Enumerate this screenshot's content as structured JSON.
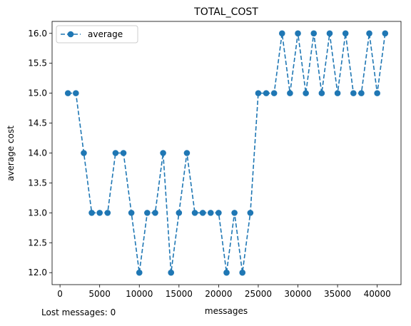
{
  "chart_data": {
    "type": "line",
    "title": "TOTAL_COST",
    "xlabel": "messages",
    "ylabel": "average cost",
    "xlim": [
      -1000,
      43000
    ],
    "ylim": [
      11.8,
      16.2
    ],
    "x_ticks": [
      0,
      5000,
      10000,
      15000,
      20000,
      25000,
      30000,
      35000,
      40000
    ],
    "y_ticks": [
      12.0,
      12.5,
      13.0,
      13.5,
      14.0,
      14.5,
      15.0,
      15.5,
      16.0
    ],
    "grid": false,
    "legend_position": "top-left",
    "series": [
      {
        "name": "average",
        "color": "#1f77b4",
        "line_style": "dashed",
        "marker": "circle",
        "x": [
          1000,
          2000,
          3000,
          4000,
          5000,
          6000,
          7000,
          8000,
          9000,
          10000,
          11000,
          12000,
          13000,
          14000,
          15000,
          16000,
          17000,
          18000,
          19000,
          20000,
          21000,
          22000,
          23000,
          24000,
          25000,
          26000,
          27000,
          28000,
          29000,
          30000,
          31000,
          32000,
          33000,
          34000,
          35000,
          36000,
          37000,
          38000,
          39000,
          40000,
          41000
        ],
        "values": [
          15,
          15,
          14,
          13,
          13,
          13,
          14,
          14,
          13,
          12,
          13,
          13,
          14,
          12,
          13,
          14,
          13,
          13,
          13,
          13,
          12,
          13,
          12,
          13,
          15,
          15,
          15,
          16,
          15,
          16,
          15,
          16,
          15,
          16,
          15,
          16,
          15,
          15,
          16,
          15,
          16
        ]
      }
    ]
  },
  "footer": {
    "lost_messages": "Lost messages: 0"
  }
}
